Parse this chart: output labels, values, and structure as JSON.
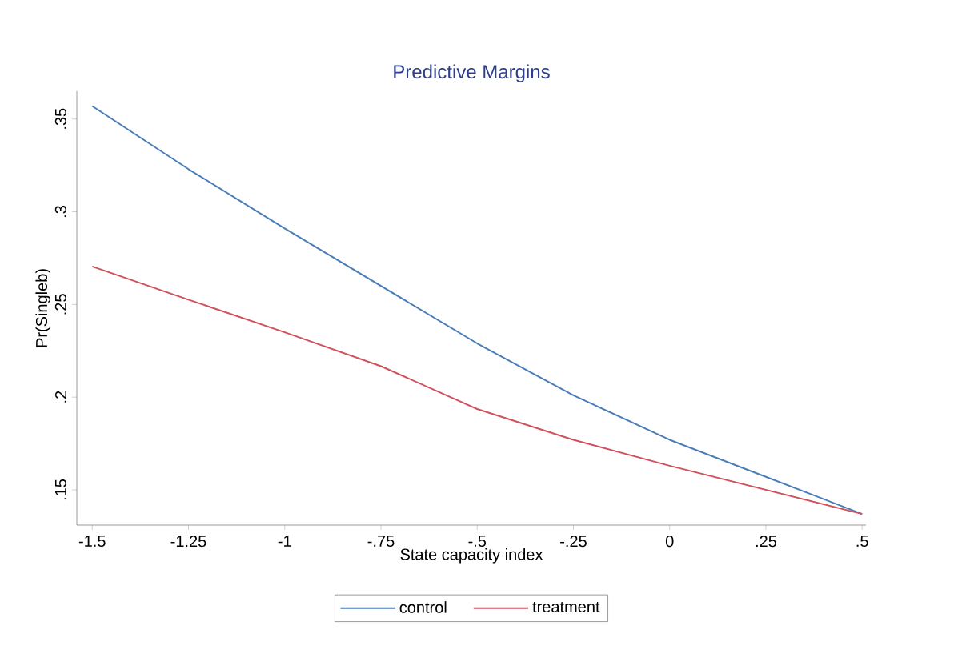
{
  "chart_data": {
    "type": "line",
    "title": "Predictive Margins",
    "xlabel": "State capacity index",
    "ylabel": "Pr(Singleb)",
    "x": [
      -1.5,
      -1.25,
      -1,
      -0.75,
      -0.5,
      -0.25,
      0,
      0.25,
      0.5
    ],
    "series": [
      {
        "name": "control",
        "color": "#4a7db8",
        "values": [
          0.357,
          0.323,
          0.291,
          0.26,
          0.229,
          0.201,
          0.177,
          0.157,
          0.137
        ]
      },
      {
        "name": "treatment",
        "color": "#d0505c",
        "values": [
          0.2705,
          0.2526,
          0.235,
          0.2167,
          0.1936,
          0.177,
          0.163,
          0.15,
          0.137
        ]
      }
    ],
    "xlim": [
      -1.54,
      0.51
    ],
    "ylim": [
      0.131,
      0.365
    ],
    "xticks": [
      {
        "value": -1.5,
        "label": "-1.5"
      },
      {
        "value": -1.25,
        "label": "-1.25"
      },
      {
        "value": -1,
        "label": "-1"
      },
      {
        "value": -0.75,
        "label": "-.75"
      },
      {
        "value": -0.5,
        "label": "-.5"
      },
      {
        "value": -0.25,
        "label": "-.25"
      },
      {
        "value": 0,
        "label": "0"
      },
      {
        "value": 0.25,
        "label": ".25"
      },
      {
        "value": 0.5,
        "label": ".5"
      }
    ],
    "yticks": [
      {
        "value": 0.15,
        "label": ".15"
      },
      {
        "value": 0.2,
        "label": ".2"
      },
      {
        "value": 0.25,
        "label": ".25"
      },
      {
        "value": 0.3,
        "label": ".3"
      },
      {
        "value": 0.35,
        "label": ".35"
      }
    ],
    "grid": false,
    "legend": "bottom",
    "marker": "none",
    "line_style": "solid"
  }
}
